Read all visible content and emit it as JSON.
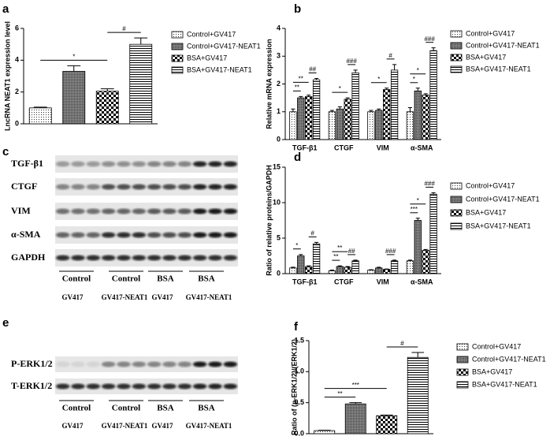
{
  "chart_data": [
    {
      "type": "bar",
      "panel_label": "a",
      "ylabel": "LncRNA NEAT1 expression level",
      "categories": [
        null
      ],
      "ylim": [
        0,
        6
      ],
      "yticks": [
        0,
        2,
        4,
        6
      ],
      "series": [
        {
          "name": "Control+GV417",
          "pattern": "dots",
          "color": "#000000",
          "values": [
            1.0
          ],
          "errors": [
            0.05
          ]
        },
        {
          "name": "Control+GV417-NEAT1",
          "pattern": "dense",
          "color": "#000000",
          "values": [
            3.3
          ],
          "errors": [
            0.35
          ]
        },
        {
          "name": "BSA+GV417",
          "pattern": "checker",
          "color": "#000000",
          "values": [
            2.05
          ],
          "errors": [
            0.15
          ]
        },
        {
          "name": "BSA+GV417-NEAT1",
          "pattern": "lines",
          "color": "#000000",
          "values": [
            5.0
          ],
          "errors": [
            0.4
          ]
        }
      ],
      "annotations": [
        {
          "text": "*",
          "category": 0,
          "from": 0,
          "to": 2
        },
        {
          "text": "#",
          "category": 0,
          "from": 2,
          "to": 3
        }
      ]
    },
    {
      "type": "bar",
      "panel_label": "b",
      "ylabel": "Relative mRNA expression",
      "categories": [
        "TGF-β1",
        "CTGF",
        "VIM",
        "α-SMA"
      ],
      "ylim": [
        0,
        4
      ],
      "yticks": [
        0,
        1,
        2,
        3,
        4
      ],
      "series": [
        {
          "name": "Control+GV417",
          "pattern": "dots",
          "color": "#000000",
          "values": [
            1.0,
            1.0,
            1.0,
            1.0
          ],
          "errors": [
            0.1,
            0.05,
            0.05,
            0.15
          ]
        },
        {
          "name": "Control+GV417-NEAT1",
          "pattern": "dense",
          "color": "#000000",
          "values": [
            1.5,
            1.1,
            1.05,
            1.75
          ],
          "errors": [
            0.05,
            0.08,
            0.05,
            0.1
          ]
        },
        {
          "name": "BSA+GV417",
          "pattern": "checker",
          "color": "#000000",
          "values": [
            1.55,
            1.45,
            1.8,
            1.6
          ],
          "errors": [
            0.05,
            0.05,
            0.05,
            0.05
          ]
        },
        {
          "name": "BSA+GV417-NEAT1",
          "pattern": "lines",
          "color": "#000000",
          "values": [
            2.15,
            2.4,
            2.5,
            3.2
          ],
          "errors": [
            0.05,
            0.1,
            0.2,
            0.1
          ]
        }
      ],
      "annotations": [
        {
          "text": "**",
          "category": 0,
          "from": 0,
          "to": 1
        },
        {
          "text": "**",
          "category": 0,
          "from": 0,
          "to": 2
        },
        {
          "text": "##",
          "category": 0,
          "from": 2,
          "to": 3
        },
        {
          "text": "*",
          "category": 1,
          "from": 0,
          "to": 2
        },
        {
          "text": "###",
          "category": 1,
          "from": 2,
          "to": 3
        },
        {
          "text": "*",
          "category": 2,
          "from": 0,
          "to": 2
        },
        {
          "text": "#",
          "category": 2,
          "from": 2,
          "to": 3
        },
        {
          "text": "*",
          "category": 3,
          "from": 0,
          "to": 1
        },
        {
          "text": "*",
          "category": 3,
          "from": 0,
          "to": 2
        },
        {
          "text": "###",
          "category": 3,
          "from": 2,
          "to": 3
        }
      ]
    },
    {
      "type": "bar",
      "panel_label": "d",
      "ylabel": "Ratio of relative proteins/GAPDH",
      "categories": [
        "TGF-β1",
        "CTGF",
        "VIM",
        "α-SMA"
      ],
      "ylim": [
        0,
        15
      ],
      "yticks": [
        0,
        5,
        10,
        15
      ],
      "series": [
        {
          "name": "Control+GV417",
          "pattern": "dots",
          "color": "#000000",
          "values": [
            0.8,
            0.4,
            0.5,
            1.8
          ],
          "errors": [
            0.1,
            0.1,
            0.05,
            0.1
          ]
        },
        {
          "name": "Control+GV417-NEAT1",
          "pattern": "dense",
          "color": "#000000",
          "values": [
            2.5,
            1.0,
            0.8,
            7.5
          ],
          "errors": [
            0.2,
            0.1,
            0.1,
            0.3
          ]
        },
        {
          "name": "BSA+GV417",
          "pattern": "checker",
          "color": "#000000",
          "values": [
            1.0,
            0.9,
            0.6,
            3.3
          ],
          "errors": [
            0.1,
            0.1,
            0.05,
            0.1
          ]
        },
        {
          "name": "BSA+GV417-NEAT1",
          "pattern": "lines",
          "color": "#000000",
          "values": [
            4.2,
            1.8,
            1.8,
            11.2
          ],
          "errors": [
            0.2,
            0.1,
            0.1,
            0.2
          ]
        }
      ],
      "annotations": [
        {
          "text": "*",
          "category": 0,
          "from": 0,
          "to": 1
        },
        {
          "text": "#",
          "category": 0,
          "from": 2,
          "to": 3
        },
        {
          "text": "**",
          "category": 1,
          "from": 0,
          "to": 1
        },
        {
          "text": "**",
          "category": 1,
          "from": 0,
          "to": 2
        },
        {
          "text": "##",
          "category": 1,
          "from": 2,
          "to": 3
        },
        {
          "text": "###",
          "category": 2,
          "from": 2,
          "to": 3
        },
        {
          "text": "***",
          "category": 3,
          "from": 0,
          "to": 1
        },
        {
          "text": "*",
          "category": 3,
          "from": 0,
          "to": 2
        },
        {
          "text": "###",
          "category": 3,
          "from": 2,
          "to": 3
        }
      ]
    },
    {
      "type": "bar",
      "panel_label": "f",
      "ylabel": "Ratio of (p-ERK1/2)/(ERK1/2)",
      "categories": [
        null
      ],
      "ylim": [
        0,
        1.5
      ],
      "yticks": [
        {
          "value": 0,
          "label": "0.0"
        },
        {
          "value": 0.5,
          "label": "0.5"
        },
        {
          "value": 1,
          "label": "1.0"
        },
        {
          "value": 1.5,
          "label": "1.5"
        }
      ],
      "series": [
        {
          "name": "Control+GV417",
          "pattern": "dots",
          "color": "#000000",
          "values": [
            0.05
          ],
          "errors": [
            0.005
          ]
        },
        {
          "name": "Control+GV417-NEAT1",
          "pattern": "dense",
          "color": "#000000",
          "values": [
            0.48
          ],
          "errors": [
            0.02
          ]
        },
        {
          "name": "BSA+GV417",
          "pattern": "checker",
          "color": "#000000",
          "values": [
            0.29
          ],
          "errors": [
            0.01
          ]
        },
        {
          "name": "BSA+GV417-NEAT1",
          "pattern": "lines",
          "color": "#000000",
          "values": [
            1.23
          ],
          "errors": [
            0.08
          ]
        }
      ],
      "annotations": [
        {
          "text": "**",
          "category": 0,
          "from": 0,
          "to": 1
        },
        {
          "text": "***",
          "category": 0,
          "from": 0,
          "to": 2
        },
        {
          "text": "#",
          "category": 0,
          "from": 2,
          "to": 3
        }
      ]
    }
  ],
  "blots": [
    {
      "panel_label": "c",
      "rows": [
        "TGF-β1",
        "CTGF",
        "VIM",
        "α-SMA",
        "GAPDH"
      ],
      "groups": [
        "Control",
        "Control",
        "BSA",
        "BSA"
      ],
      "conditions": [
        "GV417",
        "GV417-NEAT1",
        "GV417",
        "GV417-NEAT1"
      ]
    },
    {
      "panel_label": "e",
      "rows": [
        "P-ERK1/2",
        "T-ERK1/2"
      ],
      "groups": [
        "Control",
        "Control",
        "BSA",
        "BSA"
      ],
      "conditions": [
        "GV417",
        "GV417-NEAT1",
        "GV417",
        "GV417-NEAT1"
      ]
    }
  ]
}
